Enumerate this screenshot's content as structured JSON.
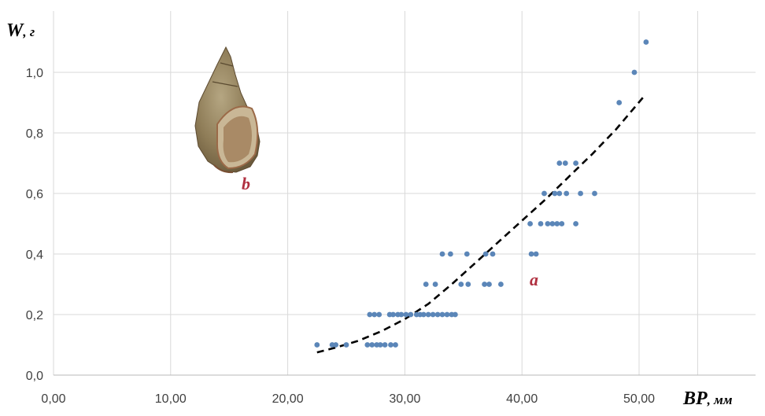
{
  "chart_data": {
    "type": "scatter",
    "xlabel": "BP",
    "xunit": ", мм",
    "ylabel": "W",
    "yunit": ", г",
    "xlim": [
      0,
      55
    ],
    "ylim": [
      0,
      1.1
    ],
    "x_ticks": [
      "0,00",
      "10,00",
      "20,00",
      "30,00",
      "40,00",
      "50,00"
    ],
    "y_ticks": [
      "0,0",
      "0,2",
      "0,4",
      "0,6",
      "0,8",
      "1,0"
    ],
    "grid": true,
    "legend": "none",
    "point_color": "#5b86b8",
    "trend_color": "#000000",
    "annotation_color": "#b03040",
    "annotations": [
      "a",
      "b"
    ],
    "series": [
      {
        "points": [
          [
            22.5,
            0.1
          ],
          [
            23.8,
            0.1
          ],
          [
            24.1,
            0.1
          ],
          [
            25.0,
            0.1
          ],
          [
            26.8,
            0.1
          ],
          [
            27.2,
            0.1
          ],
          [
            27.6,
            0.1
          ],
          [
            27.9,
            0.1
          ],
          [
            28.3,
            0.1
          ],
          [
            28.8,
            0.1
          ],
          [
            29.2,
            0.1
          ],
          [
            27.0,
            0.2
          ],
          [
            27.4,
            0.2
          ],
          [
            27.8,
            0.2
          ],
          [
            28.7,
            0.2
          ],
          [
            29.0,
            0.2
          ],
          [
            29.4,
            0.2
          ],
          [
            29.7,
            0.2
          ],
          [
            30.1,
            0.2
          ],
          [
            30.5,
            0.2
          ],
          [
            31.0,
            0.2
          ],
          [
            31.3,
            0.2
          ],
          [
            31.6,
            0.2
          ],
          [
            32.0,
            0.2
          ],
          [
            32.4,
            0.2
          ],
          [
            32.8,
            0.2
          ],
          [
            33.2,
            0.2
          ],
          [
            33.6,
            0.2
          ],
          [
            34.0,
            0.2
          ],
          [
            34.3,
            0.2
          ],
          [
            31.8,
            0.3
          ],
          [
            32.6,
            0.3
          ],
          [
            34.8,
            0.3
          ],
          [
            35.4,
            0.3
          ],
          [
            36.8,
            0.3
          ],
          [
            37.2,
            0.3
          ],
          [
            38.2,
            0.3
          ],
          [
            33.2,
            0.4
          ],
          [
            33.9,
            0.4
          ],
          [
            35.3,
            0.4
          ],
          [
            36.9,
            0.4
          ],
          [
            37.5,
            0.4
          ],
          [
            40.8,
            0.4
          ],
          [
            41.2,
            0.4
          ],
          [
            40.7,
            0.5
          ],
          [
            41.6,
            0.5
          ],
          [
            42.2,
            0.5
          ],
          [
            42.6,
            0.5
          ],
          [
            43.0,
            0.5
          ],
          [
            43.4,
            0.5
          ],
          [
            44.6,
            0.5
          ],
          [
            41.9,
            0.6
          ],
          [
            42.8,
            0.6
          ],
          [
            43.2,
            0.6
          ],
          [
            43.8,
            0.6
          ],
          [
            45.0,
            0.6
          ],
          [
            46.2,
            0.6
          ],
          [
            43.2,
            0.7
          ],
          [
            43.7,
            0.7
          ],
          [
            44.6,
            0.7
          ],
          [
            48.3,
            0.9
          ],
          [
            49.6,
            1.0
          ],
          [
            50.6,
            1.1
          ]
        ]
      }
    ],
    "trendline": {
      "points": [
        [
          22.5,
          0.075
        ],
        [
          24,
          0.09
        ],
        [
          26,
          0.113
        ],
        [
          28,
          0.145
        ],
        [
          30,
          0.185
        ],
        [
          32,
          0.235
        ],
        [
          34,
          0.3
        ],
        [
          36,
          0.37
        ],
        [
          38,
          0.44
        ],
        [
          40,
          0.51
        ],
        [
          42,
          0.58
        ],
        [
          44,
          0.655
        ],
        [
          46,
          0.73
        ],
        [
          48,
          0.81
        ],
        [
          50.4,
          0.92
        ]
      ]
    }
  }
}
